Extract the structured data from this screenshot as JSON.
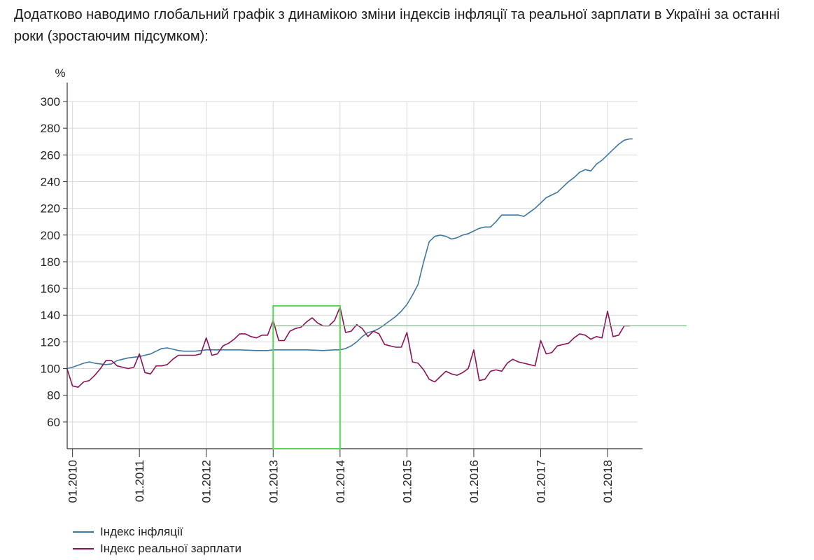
{
  "intro_text": "Додатково наводимо глобальний графік з динамікою зміни індексів інфляції та реальної зарплати в Україні за останні роки (зростаючим підсумком):",
  "colors": {
    "inflation": "#3d78a3",
    "wage": "#8c1257",
    "highlight": "#55d655",
    "grid": "#d9d9d9",
    "axis": "#333333"
  },
  "chart_data": {
    "type": "line",
    "y_unit_label": "%",
    "ylim": [
      40,
      300
    ],
    "yticks": [
      60,
      80,
      100,
      120,
      140,
      160,
      180,
      200,
      220,
      240,
      260,
      280,
      300
    ],
    "xlim": [
      2009.92,
      2018.45
    ],
    "xticks": [
      {
        "x": 2010,
        "label": "01.2010"
      },
      {
        "x": 2011,
        "label": "01.2011"
      },
      {
        "x": 2012,
        "label": "01.2012"
      },
      {
        "x": 2013,
        "label": "01.2013"
      },
      {
        "x": 2014,
        "label": "01.2014"
      },
      {
        "x": 2015,
        "label": "01.2015"
      },
      {
        "x": 2016,
        "label": "01.2016"
      },
      {
        "x": 2017,
        "label": "01.2017"
      },
      {
        "x": 2018,
        "label": "01.2018"
      }
    ],
    "grid": true,
    "legend_position": "bottom-left",
    "series": [
      {
        "name": "Індекс інфляції",
        "color": "#3d78a3",
        "points": [
          [
            2009.917,
            100
          ],
          [
            2010.0,
            101
          ],
          [
            2010.083,
            102.5
          ],
          [
            2010.167,
            104
          ],
          [
            2010.25,
            105
          ],
          [
            2010.333,
            104
          ],
          [
            2010.417,
            103.5
          ],
          [
            2010.5,
            103
          ],
          [
            2010.583,
            103.5
          ],
          [
            2010.667,
            106
          ],
          [
            2010.75,
            107
          ],
          [
            2010.833,
            108
          ],
          [
            2010.917,
            108.5
          ],
          [
            2011.0,
            109
          ],
          [
            2011.083,
            110
          ],
          [
            2011.167,
            111
          ],
          [
            2011.25,
            113
          ],
          [
            2011.333,
            115
          ],
          [
            2011.417,
            115.5
          ],
          [
            2011.5,
            114.5
          ],
          [
            2011.583,
            113.5
          ],
          [
            2011.667,
            113
          ],
          [
            2011.75,
            113
          ],
          [
            2011.833,
            113
          ],
          [
            2011.917,
            113.5
          ],
          [
            2012.0,
            114
          ],
          [
            2012.25,
            114
          ],
          [
            2012.5,
            114
          ],
          [
            2012.75,
            113.5
          ],
          [
            2012.917,
            113.5
          ],
          [
            2013.0,
            114
          ],
          [
            2013.25,
            114
          ],
          [
            2013.5,
            114
          ],
          [
            2013.75,
            113.5
          ],
          [
            2013.917,
            114
          ],
          [
            2014.0,
            114
          ],
          [
            2014.083,
            115
          ],
          [
            2014.167,
            117
          ],
          [
            2014.25,
            120
          ],
          [
            2014.333,
            124
          ],
          [
            2014.417,
            127
          ],
          [
            2014.5,
            128
          ],
          [
            2014.583,
            130
          ],
          [
            2014.667,
            133
          ],
          [
            2014.75,
            136
          ],
          [
            2014.833,
            139
          ],
          [
            2014.917,
            143
          ],
          [
            2015.0,
            148
          ],
          [
            2015.083,
            155
          ],
          [
            2015.167,
            163
          ],
          [
            2015.25,
            180
          ],
          [
            2015.333,
            195
          ],
          [
            2015.417,
            199
          ],
          [
            2015.5,
            200
          ],
          [
            2015.583,
            199
          ],
          [
            2015.667,
            197
          ],
          [
            2015.75,
            198
          ],
          [
            2015.833,
            200
          ],
          [
            2015.917,
            201
          ],
          [
            2016.0,
            203
          ],
          [
            2016.083,
            205
          ],
          [
            2016.167,
            206
          ],
          [
            2016.25,
            206
          ],
          [
            2016.333,
            210
          ],
          [
            2016.417,
            215
          ],
          [
            2016.5,
            215
          ],
          [
            2016.583,
            215
          ],
          [
            2016.667,
            215
          ],
          [
            2016.75,
            214
          ],
          [
            2016.833,
            217
          ],
          [
            2016.917,
            220
          ],
          [
            2017.0,
            224
          ],
          [
            2017.083,
            228
          ],
          [
            2017.167,
            230
          ],
          [
            2017.25,
            232
          ],
          [
            2017.333,
            236
          ],
          [
            2017.417,
            240
          ],
          [
            2017.5,
            243
          ],
          [
            2017.583,
            247
          ],
          [
            2017.667,
            249
          ],
          [
            2017.75,
            248
          ],
          [
            2017.833,
            253
          ],
          [
            2017.917,
            256
          ],
          [
            2018.0,
            260
          ],
          [
            2018.083,
            264
          ],
          [
            2018.167,
            268
          ],
          [
            2018.25,
            271
          ],
          [
            2018.333,
            272
          ],
          [
            2018.375,
            272
          ]
        ]
      },
      {
        "name": "Індекс реальної зарплати",
        "color": "#8c1257",
        "points": [
          [
            2009.917,
            100
          ],
          [
            2010.0,
            87
          ],
          [
            2010.083,
            86
          ],
          [
            2010.167,
            90
          ],
          [
            2010.25,
            91
          ],
          [
            2010.333,
            95
          ],
          [
            2010.417,
            100
          ],
          [
            2010.5,
            106
          ],
          [
            2010.583,
            106
          ],
          [
            2010.667,
            102
          ],
          [
            2010.75,
            101
          ],
          [
            2010.833,
            100
          ],
          [
            2010.917,
            101
          ],
          [
            2011.0,
            111
          ],
          [
            2011.083,
            97
          ],
          [
            2011.167,
            96
          ],
          [
            2011.25,
            102
          ],
          [
            2011.333,
            102
          ],
          [
            2011.417,
            103
          ],
          [
            2011.5,
            107
          ],
          [
            2011.583,
            110
          ],
          [
            2011.667,
            110
          ],
          [
            2011.75,
            110
          ],
          [
            2011.833,
            110
          ],
          [
            2011.917,
            111
          ],
          [
            2012.0,
            123
          ],
          [
            2012.083,
            110
          ],
          [
            2012.167,
            111
          ],
          [
            2012.25,
            117
          ],
          [
            2012.333,
            119
          ],
          [
            2012.417,
            122
          ],
          [
            2012.5,
            126
          ],
          [
            2012.583,
            126
          ],
          [
            2012.667,
            124
          ],
          [
            2012.75,
            123
          ],
          [
            2012.833,
            125
          ],
          [
            2012.917,
            125
          ],
          [
            2013.0,
            136
          ],
          [
            2013.083,
            121
          ],
          [
            2013.167,
            121
          ],
          [
            2013.25,
            128
          ],
          [
            2013.333,
            130
          ],
          [
            2013.417,
            131
          ],
          [
            2013.5,
            135
          ],
          [
            2013.583,
            138
          ],
          [
            2013.667,
            134
          ],
          [
            2013.75,
            132
          ],
          [
            2013.833,
            132
          ],
          [
            2013.917,
            136
          ],
          [
            2014.0,
            146
          ],
          [
            2014.083,
            127
          ],
          [
            2014.167,
            128
          ],
          [
            2014.25,
            133
          ],
          [
            2014.333,
            130
          ],
          [
            2014.417,
            124
          ],
          [
            2014.5,
            128
          ],
          [
            2014.583,
            126
          ],
          [
            2014.667,
            118
          ],
          [
            2014.75,
            117
          ],
          [
            2014.833,
            116
          ],
          [
            2014.917,
            116
          ],
          [
            2015.0,
            127
          ],
          [
            2015.083,
            105
          ],
          [
            2015.167,
            104
          ],
          [
            2015.25,
            99
          ],
          [
            2015.333,
            92
          ],
          [
            2015.417,
            90
          ],
          [
            2015.5,
            94
          ],
          [
            2015.583,
            98
          ],
          [
            2015.667,
            96
          ],
          [
            2015.75,
            95
          ],
          [
            2015.833,
            97
          ],
          [
            2015.917,
            100
          ],
          [
            2016.0,
            114
          ],
          [
            2016.083,
            91
          ],
          [
            2016.167,
            92
          ],
          [
            2016.25,
            98
          ],
          [
            2016.333,
            99
          ],
          [
            2016.417,
            98
          ],
          [
            2016.5,
            104
          ],
          [
            2016.583,
            107
          ],
          [
            2016.667,
            105
          ],
          [
            2016.75,
            104
          ],
          [
            2016.833,
            103
          ],
          [
            2016.917,
            102
          ],
          [
            2017.0,
            121
          ],
          [
            2017.083,
            111
          ],
          [
            2017.167,
            112
          ],
          [
            2017.25,
            117
          ],
          [
            2017.333,
            118
          ],
          [
            2017.417,
            119
          ],
          [
            2017.5,
            123
          ],
          [
            2017.583,
            126
          ],
          [
            2017.667,
            125
          ],
          [
            2017.75,
            122
          ],
          [
            2017.833,
            124
          ],
          [
            2017.917,
            123
          ],
          [
            2018.0,
            143
          ],
          [
            2018.083,
            124
          ],
          [
            2018.167,
            125
          ],
          [
            2018.25,
            132
          ],
          [
            2018.333,
            132
          ]
        ]
      }
    ],
    "annotations": {
      "highlight_box": {
        "x": [
          2013.0,
          2014.0
        ],
        "y": [
          40,
          147
        ]
      },
      "reference_line": {
        "y": 132,
        "x": [
          2013.0,
          2019.18
        ]
      }
    }
  }
}
